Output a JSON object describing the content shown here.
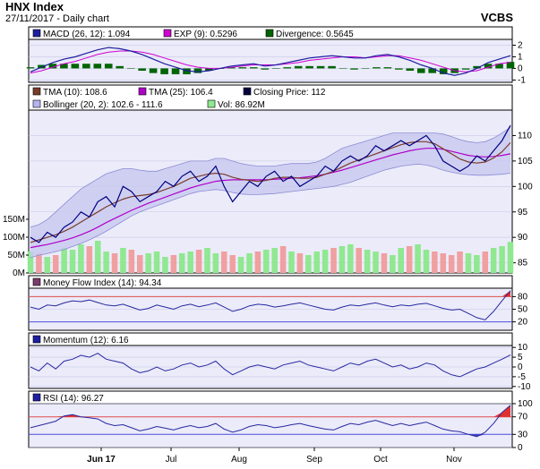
{
  "header": {
    "title": "HNX Index",
    "subtitle": "27/11/2017 - Daily chart",
    "brand": "VCBS"
  },
  "colors": {
    "panel_bg": "#ebebfa",
    "grid": "#c8c8e6",
    "band": "#c8c8f0",
    "band_line": "#8c8cd2",
    "close": "#000080",
    "tma10": "#7a3c2a",
    "tma25": "#b000c8",
    "macd": "#1e1ea0",
    "exp": "#d000d0",
    "div": "#006400",
    "vol_up": "#90e890",
    "vol_down": "#f0a0a0",
    "osc": "#2828a0",
    "fill_red": "#e03030",
    "line_red": "#e05050",
    "line_blue": "#5050e0"
  },
  "chart_data": [
    {
      "type": "area",
      "name": "macd",
      "legend": [
        "MACD (26, 12): 1.094",
        "EXP (9): 0.5296",
        "Divergence: 0.5645"
      ],
      "yticks": [
        "2",
        "1",
        "0",
        "-1"
      ],
      "ylim": [
        -1.2,
        2.5
      ],
      "macd": [
        -0.3,
        0.1,
        0.5,
        0.8,
        1.0,
        1.3,
        1.6,
        1.8,
        1.7,
        1.5,
        1.2,
        0.8,
        0.4,
        0.1,
        -0.2,
        -0.3,
        -0.2,
        0.0,
        0.2,
        0.3,
        0.4,
        0.2,
        0.3,
        0.5,
        0.7,
        0.9,
        1.0,
        1.1,
        1.0,
        0.9,
        0.9,
        1.1,
        1.2,
        1.0,
        0.7,
        0.3,
        0.0,
        -0.4,
        -0.6,
        -0.4,
        0.0,
        0.5,
        0.8,
        1.094
      ],
      "exp": [
        -0.4,
        -0.2,
        0.1,
        0.4,
        0.6,
        0.9,
        1.2,
        1.4,
        1.5,
        1.5,
        1.4,
        1.2,
        0.9,
        0.6,
        0.3,
        0.1,
        0.0,
        0.0,
        0.1,
        0.2,
        0.3,
        0.3,
        0.3,
        0.4,
        0.5,
        0.7,
        0.8,
        0.9,
        1.0,
        1.0,
        0.9,
        1.0,
        1.1,
        1.1,
        0.9,
        0.7,
        0.4,
        0.1,
        -0.2,
        -0.3,
        -0.2,
        0.1,
        0.4,
        0.5296
      ],
      "divergence": [
        0.1,
        0.3,
        0.4,
        0.4,
        0.4,
        0.4,
        0.4,
        0.4,
        0.2,
        0.0,
        -0.2,
        -0.4,
        -0.5,
        -0.5,
        -0.5,
        -0.4,
        -0.2,
        0.0,
        0.1,
        0.1,
        0.1,
        -0.1,
        0.0,
        0.1,
        0.2,
        0.2,
        0.2,
        0.2,
        0.0,
        -0.1,
        0.0,
        0.1,
        0.1,
        -0.1,
        -0.2,
        -0.4,
        -0.4,
        -0.5,
        -0.4,
        -0.1,
        0.2,
        0.4,
        0.4,
        0.5645
      ]
    },
    {
      "type": "line",
      "name": "price",
      "legend": [
        "TMA (10): 108.6",
        "TMA (25): 106.4",
        "Closing Price: 112",
        "Bollinger (20, 2): 102.6 - 111.6",
        "Vol: 86.92M"
      ],
      "yticks": [
        "110",
        "105",
        "100",
        "95",
        "90",
        "85"
      ],
      "ylim": [
        83,
        115
      ],
      "vol_ticks": [
        "150M",
        "100M",
        "50M",
        "0M"
      ],
      "vol_max": 200,
      "close": [
        90,
        89,
        91,
        90,
        92,
        93,
        95,
        94,
        97,
        98,
        96,
        100,
        99,
        97,
        98,
        99,
        101,
        100,
        102,
        103,
        101,
        102,
        104,
        100,
        97,
        99,
        101,
        100,
        102,
        103,
        101,
        102,
        100,
        101,
        102,
        104,
        103,
        105,
        106,
        105,
        106,
        108,
        107,
        108,
        109,
        108,
        109,
        110,
        108,
        105,
        104,
        103,
        104,
        106,
        105,
        107,
        109,
        112
      ],
      "tma10": [
        89,
        89.5,
        90,
        90.5,
        91.2,
        92,
        93,
        94,
        95,
        96,
        96.8,
        97.5,
        98,
        98.2,
        98.4,
        98.8,
        99.4,
        100,
        100.8,
        101.6,
        102,
        102.4,
        102.6,
        102.4,
        101.8,
        101.4,
        101.2,
        101,
        101.2,
        101.6,
        101.8,
        101.8,
        101.6,
        101.6,
        101.8,
        102.4,
        103,
        103.8,
        104.6,
        105.2,
        105.8,
        106.4,
        107,
        107.6,
        108.2,
        108.6,
        108.8,
        108.8,
        108.4,
        107.4,
        106.4,
        105.4,
        104.8,
        104.6,
        104.8,
        105.6,
        106.8,
        108.6
      ],
      "tma25": [
        88,
        88.3,
        88.6,
        89,
        89.4,
        89.9,
        90.5,
        91.2,
        92,
        92.9,
        93.7,
        94.5,
        95.3,
        96,
        96.7,
        97.3,
        97.9,
        98.5,
        99.1,
        99.7,
        100.2,
        100.6,
        101,
        101.2,
        101.3,
        101.3,
        101.3,
        101.3,
        101.3,
        101.4,
        101.5,
        101.6,
        101.7,
        101.9,
        102.1,
        102.4,
        102.8,
        103.2,
        103.7,
        104.2,
        104.7,
        105.2,
        105.7,
        106.2,
        106.6,
        107,
        107.3,
        107.5,
        107.5,
        107.3,
        106.9,
        106.5,
        106.1,
        105.9,
        105.8,
        105.9,
        106.1,
        106.4
      ],
      "bb_upper": [
        92,
        92.5,
        93.5,
        95,
        96.5,
        98,
        99.5,
        100.5,
        101.5,
        102.5,
        103,
        103.5,
        103.5,
        103.2,
        103,
        103,
        103.5,
        104,
        104.5,
        105,
        105,
        105,
        105.5,
        105.5,
        105,
        104.5,
        104.2,
        104,
        104,
        104,
        104.3,
        104.5,
        104.5,
        104.5,
        104.8,
        105.5,
        106.5,
        107.5,
        108,
        108.5,
        109,
        109.5,
        110,
        110.5,
        110.5,
        110.5,
        110.5,
        110.5,
        110.5,
        110.3,
        109.8,
        109.2,
        108.8,
        108.6,
        108.8,
        109.5,
        110.5,
        111.6
      ],
      "bb_lower": [
        86,
        86.5,
        86.8,
        87.2,
        87.6,
        88.2,
        88.8,
        89.5,
        90.3,
        91.2,
        92.2,
        93.2,
        94.2,
        95,
        95.6,
        96.2,
        96.8,
        97.4,
        98,
        98.6,
        99,
        99.2,
        99.4,
        99.2,
        98.8,
        98.5,
        98.4,
        98.4,
        98.5,
        98.6,
        98.8,
        99,
        99.2,
        99.4,
        99.6,
        99.8,
        100,
        100.4,
        100.8,
        101.4,
        102,
        102.6,
        103.2,
        103.6,
        104,
        104.2,
        104.4,
        104.2,
        103.8,
        103.2,
        102.8,
        102.5,
        102.3,
        102.2,
        102.2,
        102.3,
        102.4,
        102.6
      ],
      "volume": [
        60,
        55,
        45,
        50,
        70,
        65,
        80,
        75,
        90,
        60,
        55,
        70,
        65,
        50,
        55,
        60,
        45,
        50,
        55,
        60,
        65,
        70,
        55,
        60,
        50,
        45,
        55,
        60,
        65,
        70,
        75,
        60,
        55,
        50,
        60,
        65,
        70,
        75,
        80,
        70,
        65,
        60,
        55,
        50,
        70,
        75,
        80,
        65,
        60,
        55,
        50,
        60,
        55,
        50,
        60,
        70,
        75,
        86.92
      ],
      "volume_up": [
        true,
        false,
        true,
        false,
        true,
        true,
        true,
        false,
        true,
        true,
        false,
        true,
        false,
        false,
        true,
        true,
        true,
        false,
        true,
        true,
        false,
        true,
        true,
        false,
        false,
        true,
        true,
        false,
        true,
        true,
        false,
        true,
        false,
        true,
        true,
        true,
        false,
        true,
        true,
        false,
        true,
        true,
        false,
        true,
        true,
        false,
        true,
        true,
        false,
        false,
        false,
        false,
        true,
        true,
        false,
        true,
        true,
        true
      ]
    },
    {
      "type": "line",
      "name": "mfi",
      "legend": [
        "Money Flow Index (14): 94.34"
      ],
      "yticks": [
        "80",
        "50",
        "20"
      ],
      "ylim": [
        0,
        100
      ],
      "ref_lines": [
        80,
        20
      ],
      "values": [
        55,
        50,
        60,
        58,
        65,
        70,
        68,
        72,
        66,
        60,
        58,
        62,
        55,
        48,
        52,
        60,
        55,
        50,
        58,
        62,
        56,
        60,
        65,
        55,
        45,
        50,
        58,
        62,
        60,
        55,
        58,
        62,
        65,
        60,
        55,
        50,
        48,
        55,
        60,
        58,
        62,
        65,
        60,
        56,
        60,
        58,
        62,
        64,
        58,
        52,
        48,
        50,
        40,
        30,
        25,
        45,
        70,
        94.34
      ]
    },
    {
      "type": "line",
      "name": "momentum",
      "legend": [
        "Momentum (12): 6.16"
      ],
      "yticks": [
        "10",
        "5",
        "0",
        "-5",
        "-10"
      ],
      "ylim": [
        -11,
        11
      ],
      "values": [
        0,
        -2,
        2,
        -1,
        3,
        4,
        6,
        5,
        7,
        4,
        3,
        2,
        -1,
        -3,
        -2,
        0,
        -2,
        -1,
        1,
        2,
        0,
        1,
        3,
        -1,
        -4,
        -2,
        0,
        1,
        0,
        -1,
        1,
        2,
        3,
        1,
        0,
        -1,
        -2,
        0,
        2,
        1,
        3,
        4,
        2,
        0,
        1,
        -1,
        0,
        2,
        1,
        -2,
        -4,
        -5,
        -3,
        -1,
        0,
        2,
        4,
        6.16
      ]
    },
    {
      "type": "line",
      "name": "rsi",
      "legend": [
        "RSI (14): 96.27"
      ],
      "yticks": [
        "100",
        "70",
        "30",
        "0"
      ],
      "ylim": [
        0,
        100
      ],
      "ref_lines": [
        70,
        30
      ],
      "values": [
        45,
        50,
        55,
        60,
        72,
        75,
        70,
        68,
        65,
        55,
        50,
        52,
        45,
        38,
        42,
        48,
        44,
        40,
        46,
        50,
        45,
        48,
        55,
        42,
        35,
        40,
        48,
        52,
        50,
        45,
        48,
        52,
        55,
        50,
        46,
        42,
        40,
        48,
        55,
        52,
        58,
        62,
        56,
        50,
        55,
        50,
        54,
        58,
        50,
        42,
        38,
        36,
        30,
        25,
        35,
        55,
        80,
        96.27
      ]
    }
  ],
  "xaxis": {
    "labels": [
      "Jun 17",
      "Jul",
      "Aug",
      "Sep",
      "Oct",
      "Nov"
    ]
  }
}
